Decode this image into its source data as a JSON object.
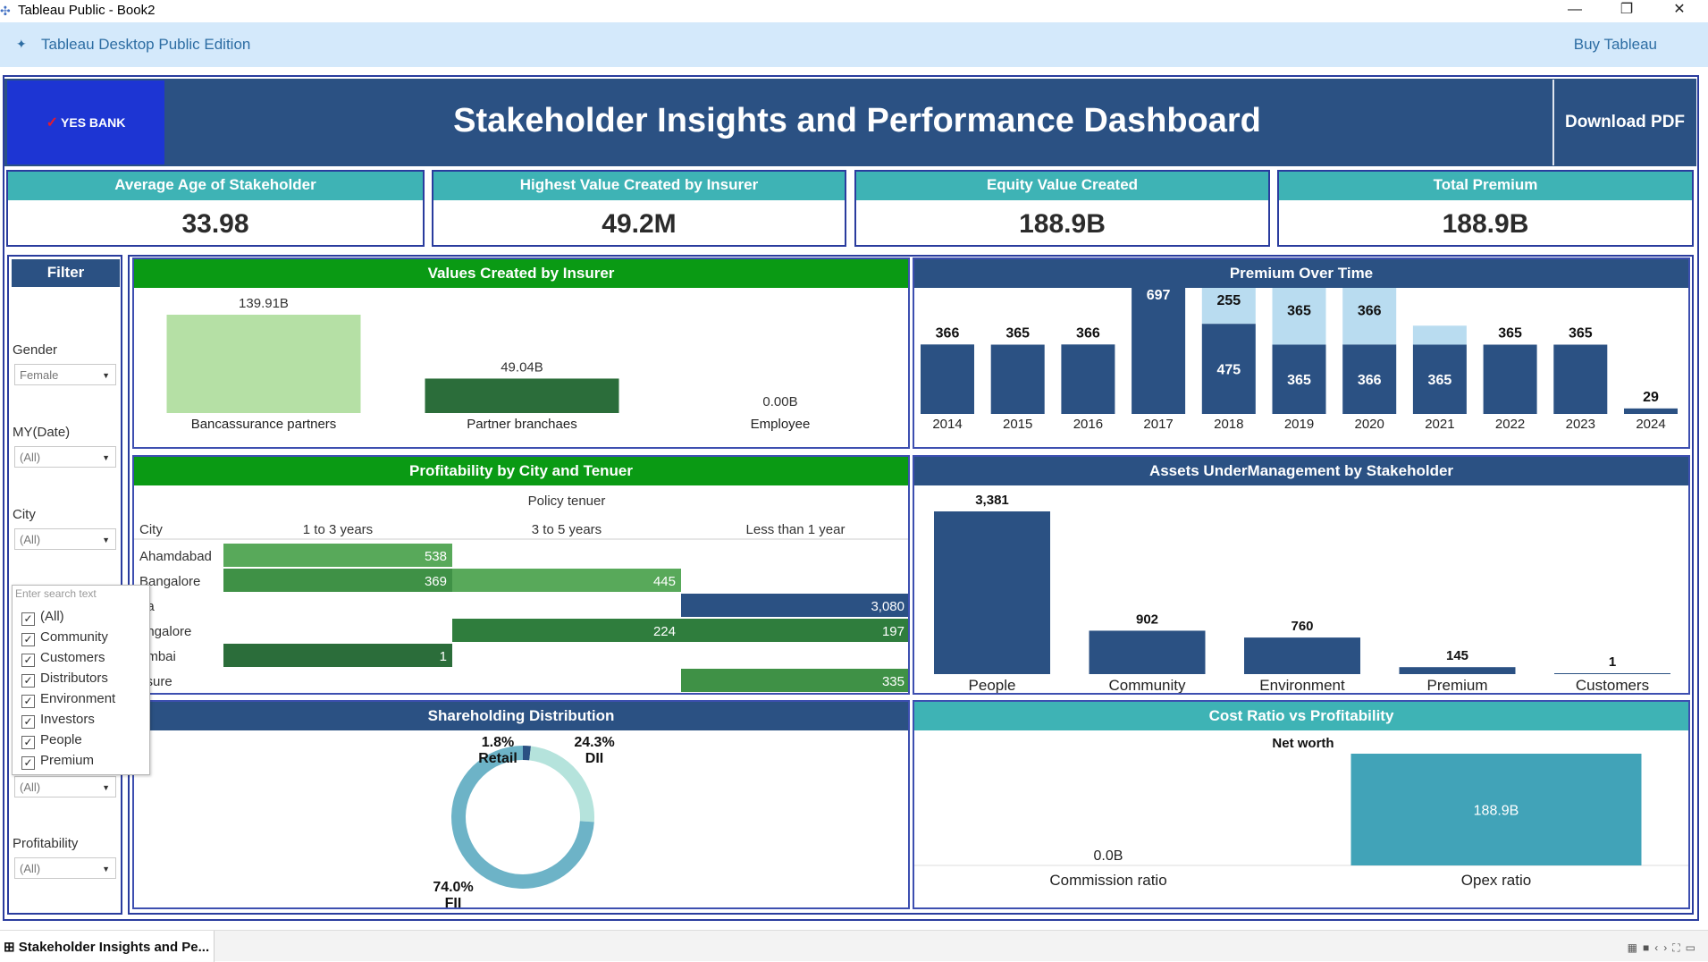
{
  "window": {
    "title": "Tableau Public - Book2",
    "minimize": "—",
    "restore": "❐",
    "close": "✕"
  },
  "publicbar": {
    "edition": "Tableau Desktop Public Edition",
    "buy": "Buy Tableau"
  },
  "header": {
    "logo_text": "YES BANK",
    "title": "Stakeholder Insights and Performance Dashboard",
    "download": "Download PDF"
  },
  "kpis": [
    {
      "label": "Average Age of Stakeholder",
      "value": "33.98"
    },
    {
      "label": "Highest Value Created by Insurer",
      "value": "49.2M"
    },
    {
      "label": "Equity Value Created",
      "value": "188.9B"
    },
    {
      "label": "Total Premium",
      "value": "188.9B"
    }
  ],
  "filter": {
    "title": "Filter",
    "gender_label": "Gender",
    "gender_value": "Female",
    "date_label": "MY(Date)",
    "date_value": "(All)",
    "city_label": "City",
    "city_value": "(All)",
    "hidden_value": "(All)",
    "profit_label": "Profitability",
    "profit_value": "(All)",
    "dropdown": {
      "placeholder": "Enter search text",
      "items": [
        "(All)",
        "Community",
        "Customers",
        "Distributors",
        "Environment",
        "Investors",
        "People",
        "Premium"
      ]
    }
  },
  "panels": {
    "values_insurer": "Values Created by Insurer",
    "premium_time": "Premium Over Time",
    "profit_city": "Profitability by City and Tenuer",
    "aum": "Assets UnderManagement by Stakeholder",
    "shareholding": "Shareholding Distribution",
    "cost_ratio": "Cost Ratio vs Profitability"
  },
  "chart_data": [
    {
      "type": "bar",
      "title": "Values Created by Insurer",
      "categories": [
        "Bancassurance partners",
        "Partner branchaes",
        "Employee"
      ],
      "values": [
        139.91,
        49.04,
        0.0
      ],
      "labels": [
        "139.91B",
        "49.04B",
        "0.00B"
      ],
      "colors": [
        "#b5e0a5",
        "#2b6d3a",
        "#2b6d3a"
      ]
    },
    {
      "type": "bar",
      "title": "Premium Over Time",
      "categories": [
        "2014",
        "2015",
        "2016",
        "2017",
        "2018",
        "2019",
        "2020",
        "2021",
        "2022",
        "2023",
        "2024"
      ],
      "series": [
        {
          "values": [
            366,
            365,
            366,
            697,
            475,
            365,
            366,
            365,
            365,
            365,
            29
          ]
        },
        {
          "values": [
            0,
            0,
            0,
            0,
            255,
            365,
            366,
            100,
            0,
            0,
            0
          ]
        }
      ],
      "top_labels": [
        "366",
        "365",
        "366",
        "697",
        "255",
        "365",
        "366",
        "",
        "365",
        "365",
        "29"
      ],
      "inner_labels": [
        "",
        "",
        "",
        "",
        "475",
        "365",
        "366",
        "365",
        "",
        "",
        ""
      ],
      "colors": [
        "#2b5183",
        "#b9dcf0"
      ]
    },
    {
      "type": "table",
      "title": "Profitability by City and Tenuer",
      "column_title": "Policy tenuer",
      "row_header": "City",
      "columns": [
        "1 to 3 years",
        "3 to 5 years",
        "Less than 1 year"
      ],
      "rows": [
        {
          "city": "Ahamdabad",
          "values": [
            538,
            null,
            null
          ]
        },
        {
          "city": "Bangalore",
          "values": [
            369,
            445,
            null
          ]
        },
        {
          "city": "oa",
          "values": [
            null,
            null,
            3080
          ]
        },
        {
          "city": "angalore",
          "values": [
            null,
            224,
            197
          ]
        },
        {
          "city": "umbai",
          "values": [
            1,
            null,
            null
          ]
        },
        {
          "city": "ysure",
          "values": [
            null,
            null,
            335
          ]
        }
      ],
      "labels": [
        [
          "538",
          "",
          ""
        ],
        [
          "369",
          "445",
          ""
        ],
        [
          "",
          "",
          "3,080"
        ],
        [
          "",
          "224",
          "197"
        ],
        [
          "1",
          "",
          ""
        ],
        [
          "",
          "",
          "335"
        ]
      ]
    },
    {
      "type": "bar",
      "title": "Assets UnderManagement by Stakeholder",
      "categories": [
        "People",
        "Community",
        "Environment",
        "Premium",
        "Customers"
      ],
      "values": [
        3381,
        902,
        760,
        145,
        1
      ],
      "labels": [
        "3,381",
        "902",
        "760",
        "145",
        "1"
      ],
      "colors": [
        "#2b5183"
      ]
    },
    {
      "type": "pie",
      "title": "Shareholding Distribution",
      "slices": [
        {
          "name": "FII",
          "value": 74.0,
          "label": "74.0%",
          "color": "#6db3c7"
        },
        {
          "name": "Retail",
          "value": 1.8,
          "label": "1.8%",
          "color": "#2b5183"
        },
        {
          "name": "DII",
          "value": 24.3,
          "label": "24.3%",
          "color": "#b5e3dc"
        }
      ]
    },
    {
      "type": "bar",
      "title": "Cost Ratio vs Profitability",
      "subtitle": "Net worth",
      "categories": [
        "Commission ratio",
        "Opex ratio"
      ],
      "values": [
        0.0,
        188.9
      ],
      "labels": [
        "0.0B",
        "188.9B"
      ],
      "colors": [
        "#41a3b8"
      ]
    }
  ],
  "bottom": {
    "sheet_tab": "Stakeholder Insights and Pe..."
  }
}
